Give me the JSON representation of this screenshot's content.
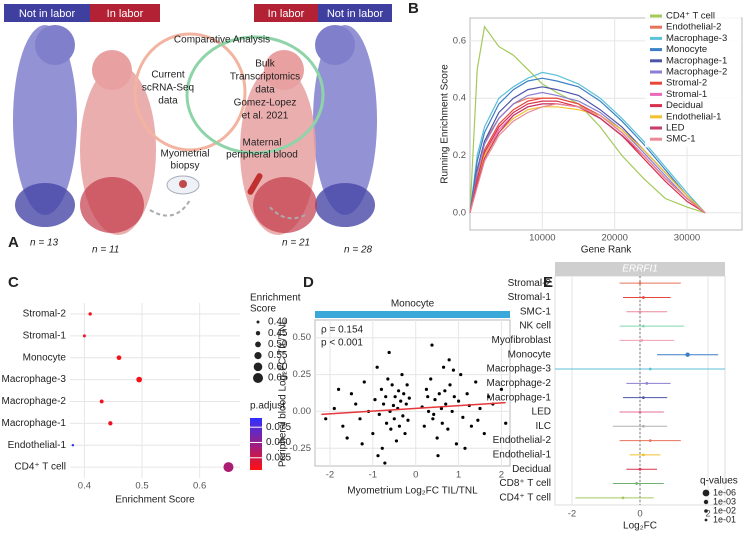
{
  "panels": [
    "A",
    "B",
    "C",
    "D",
    "E"
  ],
  "diagram": {
    "left_header": [
      "Not in labor",
      "In labor"
    ],
    "right_header": [
      "In labor",
      "Not in labor"
    ],
    "comparative": "Comparative Analysis",
    "current": [
      "Current",
      "scRNA-Seq",
      "data"
    ],
    "bulk": [
      "Bulk",
      "Transcriptomics",
      "data",
      "Gomez-Lopez",
      "et al. 2021"
    ],
    "biopsy": [
      "Myometrial",
      "biopsy"
    ],
    "blood": [
      "Maternal",
      "peripheral blood"
    ],
    "counts": [
      "n = 13",
      "n = 11",
      "n = 21",
      "n = 28"
    ]
  },
  "chart_data": [
    {
      "type": "line",
      "ylabel": "Running Enrichment Score",
      "xlabel": "Gene Rank",
      "grid": true,
      "xlim": [
        0,
        37600
      ],
      "xticks": [
        10000,
        20000,
        30000
      ],
      "ylim": [
        -0.06,
        0.68
      ],
      "yticks": [
        {
          "value": 0,
          "label": "0.0"
        },
        0.2,
        0.4,
        0.6
      ],
      "x": [
        0,
        1000,
        2000,
        4000,
        6000,
        8000,
        10000,
        12000,
        15000,
        18000,
        21000,
        24000,
        27000,
        30000,
        32500
      ],
      "series": [
        {
          "name": "CD4⁺ T cell",
          "color": "#a3c95a",
          "values": [
            0,
            0.5,
            0.65,
            0.58,
            0.55,
            0.5,
            0.45,
            0.42,
            0.38,
            0.3,
            0.2,
            0.12,
            0.05,
            0.02,
            0
          ]
        },
        {
          "name": "Endothelial-2",
          "color": "#e8735a",
          "values": [
            0,
            0.15,
            0.25,
            0.33,
            0.38,
            0.4,
            0.4,
            0.4,
            0.38,
            0.33,
            0.27,
            0.2,
            0.12,
            0.05,
            0
          ]
        },
        {
          "name": "Macrophage-3",
          "color": "#5bc0d8",
          "values": [
            0,
            0.2,
            0.3,
            0.4,
            0.44,
            0.47,
            0.49,
            0.48,
            0.45,
            0.4,
            0.33,
            0.25,
            0.16,
            0.07,
            0
          ]
        },
        {
          "name": "Monocyte",
          "color": "#3b7fc4",
          "values": [
            0,
            0.18,
            0.28,
            0.38,
            0.43,
            0.46,
            0.47,
            0.46,
            0.44,
            0.39,
            0.32,
            0.24,
            0.15,
            0.06,
            0
          ]
        },
        {
          "name": "Macrophage-1",
          "color": "#4b55a8",
          "values": [
            0,
            0.15,
            0.25,
            0.35,
            0.4,
            0.43,
            0.44,
            0.43,
            0.41,
            0.36,
            0.3,
            0.22,
            0.14,
            0.06,
            0
          ]
        },
        {
          "name": "Macrophage-2",
          "color": "#8a7fd0",
          "values": [
            0,
            0.14,
            0.24,
            0.33,
            0.38,
            0.41,
            0.42,
            0.41,
            0.39,
            0.35,
            0.29,
            0.21,
            0.13,
            0.05,
            0
          ]
        },
        {
          "name": "Stromal-2",
          "color": "#e8463a",
          "values": [
            0,
            0.12,
            0.22,
            0.31,
            0.36,
            0.39,
            0.4,
            0.4,
            0.38,
            0.34,
            0.28,
            0.2,
            0.12,
            0.05,
            0
          ]
        },
        {
          "name": "Stromal-1",
          "color": "#e86ab8",
          "values": [
            0,
            0.1,
            0.2,
            0.29,
            0.34,
            0.37,
            0.38,
            0.38,
            0.37,
            0.33,
            0.27,
            0.2,
            0.12,
            0.05,
            0
          ]
        },
        {
          "name": "Decidual",
          "color": "#d9304f",
          "values": [
            0,
            0.11,
            0.21,
            0.3,
            0.35,
            0.38,
            0.39,
            0.39,
            0.37,
            0.33,
            0.27,
            0.19,
            0.11,
            0.04,
            0
          ]
        },
        {
          "name": "Endothelial-1",
          "color": "#f2c12e",
          "values": [
            0,
            0.1,
            0.2,
            0.28,
            0.33,
            0.36,
            0.37,
            0.37,
            0.36,
            0.34,
            0.29,
            0.22,
            0.14,
            0.06,
            0
          ]
        },
        {
          "name": "LED",
          "color": "#c83a6a",
          "values": [
            0,
            0.1,
            0.19,
            0.28,
            0.34,
            0.37,
            0.38,
            0.38,
            0.37,
            0.33,
            0.27,
            0.2,
            0.12,
            0.05,
            0
          ]
        },
        {
          "name": "SMC-1",
          "color": "#e88a9a",
          "values": [
            0,
            0.09,
            0.18,
            0.27,
            0.32,
            0.35,
            0.37,
            0.38,
            0.37,
            0.34,
            0.28,
            0.2,
            0.12,
            0.05,
            0
          ]
        }
      ]
    },
    {
      "type": "dot",
      "xlabel": "Enrichment Score",
      "grid": true,
      "categories": [
        "Stromal-2",
        "Stromal-1",
        "Monocyte",
        "Macrophage-3",
        "Macrophage-2",
        "Macrophage-1",
        "Endothelial-1",
        "CD4⁺ T cell"
      ],
      "values": [
        0.41,
        0.4,
        0.46,
        0.495,
        0.43,
        0.445,
        0.38,
        0.65
      ],
      "p_adjust": [
        0.01,
        0.012,
        0.008,
        0.008,
        0.01,
        0.012,
        0.09,
        0.04
      ],
      "xlim": [
        0.375,
        0.67
      ],
      "xticks": [
        0.4,
        0.5,
        0.6
      ],
      "size_title": [
        "Enrichment",
        "Score"
      ],
      "size_legend": [
        {
          "value": 0.4,
          "label": "0.40"
        },
        0.45,
        {
          "value": 0.5,
          "label": "0.50"
        },
        0.55,
        {
          "value": 0.6,
          "label": "0.60"
        },
        0.65
      ],
      "color_title": "p.adjust",
      "color_range": [
        "#ff1010",
        "#3030ff"
      ],
      "clim": [
        0.005,
        0.09
      ],
      "cticks": [
        0.075,
        {
          "value": 0.05,
          "label": "0.050"
        },
        0.025
      ]
    },
    {
      "type": "scatter",
      "title": "Monocyte",
      "color": "#000000",
      "fit_color": "#e8363a",
      "xlabel": "Myometrium Log₂FC TIL/TNL",
      "ylabel": "Peripheral blood Log₂FC TIL/TNL",
      "annotations": [
        "ρ = 0.154",
        "p < 0.001"
      ],
      "xlim": [
        -2.35,
        2.2
      ],
      "xticks": [
        -2,
        -1,
        0,
        1,
        2
      ],
      "ylim": [
        -0.37,
        0.62
      ],
      "yticks": [
        -0.25,
        {
          "value": 0,
          "label": "0.00"
        },
        0.25,
        {
          "value": 0.5,
          "label": "0.50"
        }
      ],
      "x": [
        -1.9,
        -1.7,
        -1.5,
        -1.3,
        -1.2,
        -1.1,
        -1.0,
        -0.95,
        -0.9,
        -0.85,
        -0.8,
        -0.78,
        -0.75,
        -0.7,
        -0.68,
        -0.65,
        -0.6,
        -0.58,
        -0.55,
        -0.52,
        -0.5,
        -0.48,
        -0.45,
        -0.42,
        -0.4,
        -0.38,
        -0.35,
        -0.32,
        -0.3,
        -0.28,
        -0.25,
        -0.22,
        -0.2,
        -0.18,
        -0.15,
        -1.4,
        -1.6,
        -2.1,
        -1.8,
        -1.25,
        -0.88,
        -0.62,
        -0.72,
        0.15,
        0.2,
        0.25,
        0.3,
        0.35,
        0.4,
        0.45,
        0.5,
        0.55,
        0.6,
        0.62,
        0.65,
        0.7,
        0.75,
        0.8,
        0.85,
        0.9,
        0.95,
        1.0,
        1.05,
        1.1,
        1.2,
        1.3,
        1.4,
        1.5,
        1.6,
        1.7,
        1.8,
        2.0,
        0.38,
        0.52,
        0.78,
        1.15,
        0.28,
        0.68,
        1.25,
        0.42,
        0.88,
        1.45,
        2.1
      ],
      "values": [
        0.02,
        -0.1,
        0.12,
        -0.05,
        0.2,
        0.0,
        -0.15,
        0.08,
        0.3,
        -0.02,
        0.15,
        -0.25,
        0.05,
        0.1,
        -0.08,
        0.22,
        0.0,
        -0.12,
        0.18,
        0.04,
        -0.05,
        0.1,
        -0.2,
        0.02,
        0.14,
        -0.1,
        0.07,
        0.25,
        -0.03,
        0.12,
        -0.15,
        0.05,
        0.18,
        -0.06,
        0.09,
        0.05,
        -0.18,
        -0.05,
        0.15,
        -0.22,
        -0.3,
        0.4,
        -0.35,
        0.03,
        -0.1,
        0.15,
        0.0,
        0.22,
        -0.05,
        0.08,
        -0.18,
        0.12,
        0.02,
        -0.08,
        0.3,
        0.05,
        -0.12,
        0.18,
        0.0,
        0.1,
        -0.22,
        0.07,
        0.25,
        -0.04,
        0.12,
        -0.1,
        0.2,
        0.02,
        -0.15,
        0.1,
        0.05,
        0.15,
        0.45,
        -0.3,
        0.35,
        -0.25,
        0.1,
        0.14,
        0.04,
        -0.02,
        0.28,
        -0.06,
        -0.08
      ],
      "fit": {
        "x": [
          -2.2,
          2.1
        ],
        "values": [
          -0.02,
          0.06
        ]
      }
    },
    {
      "type": "forest",
      "title": "ERRFI1",
      "xlabel": "Log₂FC",
      "categories": [
        "Stromal-2",
        "Stromal-1",
        "SMC-1",
        "NK cell",
        "Myofibroblast",
        "Monocyte",
        "Macrophage-3",
        "Macrophage-2",
        "Macrophage-1",
        "LED",
        "ILC",
        "Endothelial-2",
        "Endothelial-1",
        "Decidual",
        "CD8⁺ T cell",
        "CD4⁺ T cell"
      ],
      "values": [
        0,
        0.1,
        0,
        0.1,
        0.05,
        1.4,
        0.3,
        0.2,
        0.1,
        0,
        0.1,
        0.3,
        0.1,
        0,
        -0.1,
        -0.5
      ],
      "lower": [
        -0.6,
        -0.5,
        -0.4,
        -0.6,
        -0.6,
        0.5,
        -2.5,
        -0.4,
        -0.5,
        -0.6,
        -0.8,
        -0.6,
        -0.3,
        -0.4,
        -0.8,
        -1.9
      ],
      "upper": [
        1.2,
        0.9,
        0.8,
        1.3,
        1.0,
        2.3,
        2.5,
        0.9,
        0.8,
        0.7,
        0.8,
        1.2,
        0.6,
        0.5,
        0.7,
        0.4
      ],
      "q_values": [
        0.1,
        0.1,
        0.1,
        0.1,
        0.1,
        0.001,
        0.1,
        0.1,
        0.1,
        0.1,
        0.1,
        0.1,
        0.1,
        0.1,
        0.1,
        0.1
      ],
      "colors": [
        "#e8735a",
        "#e8463a",
        "#e88a9a",
        "#7fd6b0",
        "#f0a0b0",
        "#3b7fc4",
        "#5bc0d8",
        "#8a7fd0",
        "#4b55a8",
        "#e07090",
        "#b0b0b0",
        "#e8735a",
        "#f2c12e",
        "#d9304f",
        "#70b070",
        "#a3c95a"
      ],
      "xlim": [
        -2.5,
        2.5
      ],
      "xticks": [
        -2,
        0,
        2
      ],
      "q_title": "q-values",
      "q_legend": [
        {
          "value": 1e-06,
          "label": "1e-06"
        },
        {
          "value": 0.001,
          "label": "1e-03"
        },
        {
          "value": 0.01,
          "label": "1e-02"
        },
        {
          "value": 0.1,
          "label": "1e-01"
        }
      ]
    }
  ]
}
